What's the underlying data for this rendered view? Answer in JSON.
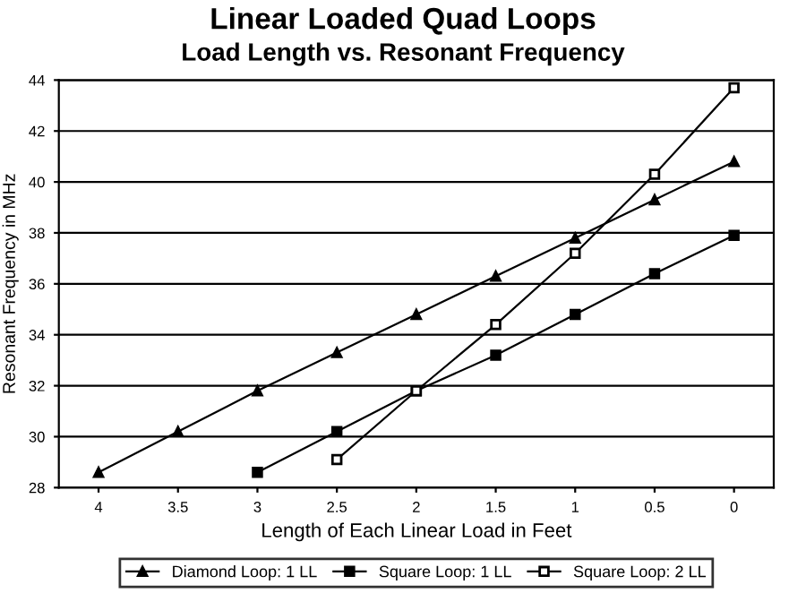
{
  "chart_data": {
    "type": "line",
    "title": "Linear Loaded Quad Loops",
    "subtitle": "Load Length vs. Resonant Frequency",
    "xlabel": "Length of Each Linear Load in Feet",
    "ylabel": "Resonant Frequency in MHz",
    "x": [
      4,
      3.5,
      3,
      2.5,
      2,
      1.5,
      1,
      0.5,
      0
    ],
    "series": [
      {
        "name": "Diamond Loop: 1 LL",
        "color": "#000000",
        "marker": "triangle",
        "values": [
          28.6,
          30.2,
          31.8,
          33.3,
          34.8,
          36.3,
          37.8,
          39.3,
          40.8
        ]
      },
      {
        "name": "Square Loop: 1 LL",
        "color": "#000000",
        "marker": "square",
        "values": [
          null,
          null,
          28.6,
          30.2,
          31.8,
          33.2,
          34.8,
          36.4,
          37.9
        ]
      },
      {
        "name": "Square Loop: 2 LL",
        "color": "#000000",
        "marker": "square",
        "values": [
          null,
          null,
          null,
          29.1,
          31.8,
          34.4,
          37.2,
          40.3,
          43.7
        ]
      }
    ],
    "xlim": [
      4.25,
      -0.25
    ],
    "xticks": [
      4,
      3.5,
      3,
      2.5,
      2,
      1.5,
      1,
      0.5,
      0
    ],
    "ylim": [
      28,
      44
    ],
    "yticks": [
      28,
      30,
      32,
      34,
      36,
      38,
      40,
      42,
      44
    ],
    "grid": "y",
    "legend": "bottom",
    "line_style": "solid"
  }
}
